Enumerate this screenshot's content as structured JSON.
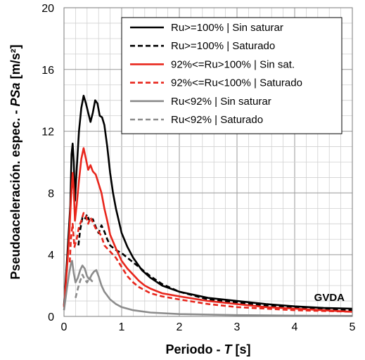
{
  "chart_data": {
    "type": "line",
    "xlabel": "Periodo - T [s]",
    "ylabel": "Pseudoaceleración. espec. - PSa [m/s²]",
    "xlim": [
      0,
      5
    ],
    "ylim": [
      0,
      20
    ],
    "xticks": [
      0,
      1,
      2,
      3,
      4,
      5
    ],
    "yticks": [
      0,
      4,
      8,
      12,
      16,
      20
    ],
    "x_minor_step": 0.2,
    "y_minor_step": 1,
    "grid": true,
    "legend_position": "top-right",
    "annotation": "GVDA",
    "series": [
      {
        "name": "Ru>=100% | Sin saturar",
        "color": "#000000",
        "dash": "solid",
        "points": [
          [
            0,
            0.7
          ],
          [
            0.05,
            3.5
          ],
          [
            0.09,
            6.0
          ],
          [
            0.11,
            7.2
          ],
          [
            0.13,
            10.5
          ],
          [
            0.15,
            11.2
          ],
          [
            0.17,
            10.0
          ],
          [
            0.19,
            7.5
          ],
          [
            0.22,
            9.5
          ],
          [
            0.26,
            12.0
          ],
          [
            0.3,
            13.5
          ],
          [
            0.34,
            14.3
          ],
          [
            0.38,
            13.8
          ],
          [
            0.42,
            13.2
          ],
          [
            0.46,
            12.6
          ],
          [
            0.5,
            13.2
          ],
          [
            0.54,
            14.0
          ],
          [
            0.58,
            13.8
          ],
          [
            0.62,
            13.0
          ],
          [
            0.66,
            12.9
          ],
          [
            0.7,
            12.4
          ],
          [
            0.75,
            11.0
          ],
          [
            0.8,
            9.3
          ],
          [
            0.85,
            8.0
          ],
          [
            0.9,
            7.0
          ],
          [
            1.0,
            5.4
          ],
          [
            1.1,
            4.5
          ],
          [
            1.2,
            3.8
          ],
          [
            1.35,
            3.0
          ],
          [
            1.5,
            2.5
          ],
          [
            1.7,
            2.0
          ],
          [
            2.0,
            1.6
          ],
          [
            2.5,
            1.2
          ],
          [
            3.0,
            1.0
          ],
          [
            3.5,
            0.8
          ],
          [
            4.0,
            0.65
          ],
          [
            4.5,
            0.55
          ],
          [
            5.0,
            0.5
          ]
        ]
      },
      {
        "name": "Ru>=100% | Saturado",
        "color": "#000000",
        "dash": "dashed",
        "points": [
          [
            0.25,
            4.6
          ],
          [
            0.28,
            5.6
          ],
          [
            0.32,
            6.4
          ],
          [
            0.36,
            6.3
          ],
          [
            0.4,
            6.6
          ],
          [
            0.45,
            6.1
          ],
          [
            0.5,
            6.3
          ],
          [
            0.55,
            5.8
          ],
          [
            0.6,
            5.4
          ],
          [
            0.65,
            5.9
          ],
          [
            0.7,
            5.5
          ],
          [
            0.75,
            5.0
          ],
          [
            0.8,
            4.6
          ],
          [
            0.9,
            4.3
          ],
          [
            1.0,
            4.1
          ],
          [
            1.1,
            3.8
          ],
          [
            1.2,
            3.5
          ],
          [
            1.3,
            3.2
          ],
          [
            1.4,
            2.9
          ],
          [
            1.5,
            2.6
          ],
          [
            1.7,
            2.1
          ],
          [
            2.0,
            1.6
          ],
          [
            2.5,
            1.1
          ],
          [
            3.0,
            0.9
          ],
          [
            3.5,
            0.7
          ],
          [
            4.0,
            0.55
          ],
          [
            4.5,
            0.45
          ],
          [
            5.0,
            0.4
          ]
        ]
      },
      {
        "name": "92%<=Ru>100% | Sin sat.",
        "color": "#e8261c",
        "dash": "solid",
        "points": [
          [
            0,
            0.6
          ],
          [
            0.05,
            3.0
          ],
          [
            0.09,
            5.2
          ],
          [
            0.12,
            7.5
          ],
          [
            0.15,
            9.3
          ],
          [
            0.17,
            8.2
          ],
          [
            0.19,
            6.2
          ],
          [
            0.22,
            7.2
          ],
          [
            0.26,
            8.8
          ],
          [
            0.3,
            10.2
          ],
          [
            0.34,
            10.9
          ],
          [
            0.38,
            10.2
          ],
          [
            0.42,
            9.5
          ],
          [
            0.46,
            9.8
          ],
          [
            0.5,
            9.4
          ],
          [
            0.55,
            9.2
          ],
          [
            0.6,
            8.6
          ],
          [
            0.65,
            8.0
          ],
          [
            0.7,
            7.0
          ],
          [
            0.75,
            6.2
          ],
          [
            0.8,
            5.3
          ],
          [
            0.9,
            4.4
          ],
          [
            1.0,
            3.6
          ],
          [
            1.1,
            3.1
          ],
          [
            1.2,
            2.7
          ],
          [
            1.3,
            2.3
          ],
          [
            1.4,
            2.0
          ],
          [
            1.5,
            1.8
          ],
          [
            1.7,
            1.5
          ],
          [
            2.0,
            1.3
          ],
          [
            2.5,
            1.0
          ],
          [
            3.0,
            0.8
          ],
          [
            3.5,
            0.6
          ],
          [
            4.0,
            0.5
          ],
          [
            4.5,
            0.4
          ],
          [
            5.0,
            0.3
          ]
        ]
      },
      {
        "name": "92%<=Ru<100% | Saturado",
        "color": "#e8261c",
        "dash": "dashed",
        "points": [
          [
            0.1,
            3.5
          ],
          [
            0.12,
            5.0
          ],
          [
            0.15,
            6.0
          ],
          [
            0.18,
            4.5
          ],
          [
            0.22,
            5.0
          ],
          [
            0.26,
            5.8
          ],
          [
            0.3,
            6.2
          ],
          [
            0.34,
            6.7
          ],
          [
            0.38,
            6.5
          ],
          [
            0.42,
            6.0
          ],
          [
            0.46,
            6.4
          ],
          [
            0.5,
            6.1
          ],
          [
            0.55,
            5.7
          ],
          [
            0.6,
            5.5
          ],
          [
            0.65,
            5.2
          ],
          [
            0.7,
            4.6
          ],
          [
            0.8,
            4.2
          ],
          [
            0.9,
            3.8
          ],
          [
            1.0,
            3.2
          ],
          [
            1.1,
            2.6
          ],
          [
            1.2,
            2.2
          ],
          [
            1.3,
            1.9
          ],
          [
            1.4,
            1.7
          ],
          [
            1.5,
            1.5
          ],
          [
            1.7,
            1.3
          ],
          [
            2.0,
            1.1
          ],
          [
            2.5,
            0.8
          ],
          [
            3.0,
            0.6
          ],
          [
            3.5,
            0.5
          ],
          [
            4.0,
            0.4
          ],
          [
            4.5,
            0.35
          ],
          [
            5.0,
            0.3
          ]
        ]
      },
      {
        "name": "Ru<92% | Sin saturar",
        "color": "#8c8c8c",
        "dash": "solid",
        "points": [
          [
            0,
            0.4
          ],
          [
            0.05,
            1.8
          ],
          [
            0.09,
            2.8
          ],
          [
            0.12,
            3.4
          ],
          [
            0.14,
            3.6
          ],
          [
            0.17,
            2.8
          ],
          [
            0.2,
            2.2
          ],
          [
            0.24,
            2.5
          ],
          [
            0.28,
            3.0
          ],
          [
            0.32,
            3.3
          ],
          [
            0.36,
            3.1
          ],
          [
            0.4,
            2.6
          ],
          [
            0.44,
            2.4
          ],
          [
            0.48,
            2.7
          ],
          [
            0.52,
            2.9
          ],
          [
            0.56,
            3.0
          ],
          [
            0.6,
            2.6
          ],
          [
            0.65,
            2.0
          ],
          [
            0.7,
            1.6
          ],
          [
            0.8,
            1.1
          ],
          [
            0.9,
            0.8
          ],
          [
            1.0,
            0.6
          ],
          [
            1.2,
            0.4
          ],
          [
            1.5,
            0.25
          ],
          [
            2.0,
            0.15
          ],
          [
            3.0,
            0.08
          ],
          [
            4.0,
            0.05
          ],
          [
            5.0,
            0.03
          ]
        ]
      },
      {
        "name": "Ru<92% | Saturado",
        "color": "#8c8c8c",
        "dash": "dashed",
        "points": [
          [
            0.2,
            1.2
          ],
          [
            0.24,
            1.8
          ],
          [
            0.28,
            2.3
          ],
          [
            0.32,
            2.7
          ],
          [
            0.36,
            2.4
          ],
          [
            0.4,
            2.2
          ],
          [
            0.44,
            2.5
          ],
          [
            0.48,
            2.3
          ],
          [
            0.52,
            2.2
          ]
        ]
      }
    ]
  }
}
